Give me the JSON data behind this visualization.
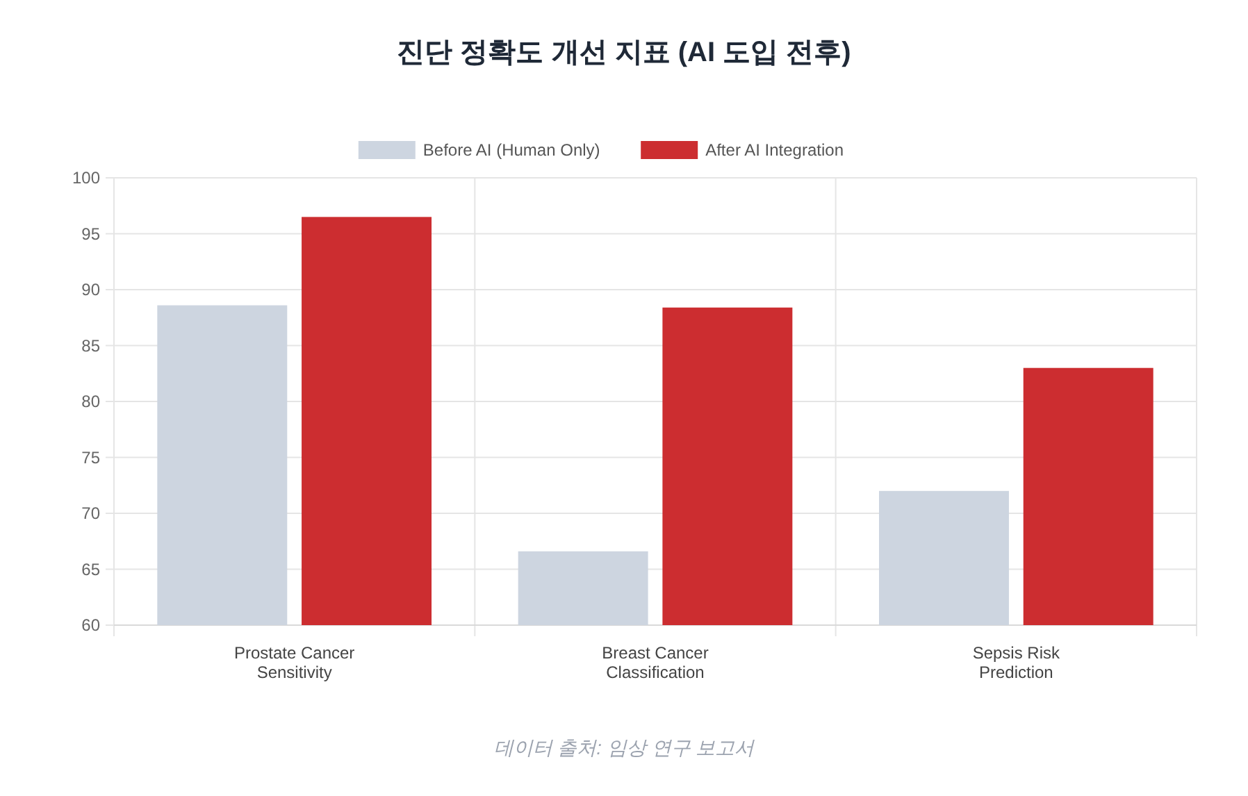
{
  "chart_data": {
    "type": "bar",
    "title": "진단 정확도 개선 지표 (AI 도입 전후)",
    "categories": [
      "Prostate Cancer\nSensitivity",
      "Breast Cancer\nClassification",
      "Sepsis Risk\nPrediction"
    ],
    "series": [
      {
        "name": "Before AI (Human Only)",
        "color": "#cdd5e0",
        "values": [
          88.6,
          66.6,
          72
        ]
      },
      {
        "name": "After AI Integration",
        "color": "#cc2d30",
        "values": [
          96.5,
          88.4,
          83
        ]
      }
    ],
    "ylim": [
      60,
      100
    ],
    "yticks": [
      60,
      65,
      70,
      75,
      80,
      85,
      90,
      95,
      100
    ],
    "grid": true,
    "legend": "top",
    "annotations": [
      "데이터 출처: 임상 연구 보고서"
    ]
  }
}
